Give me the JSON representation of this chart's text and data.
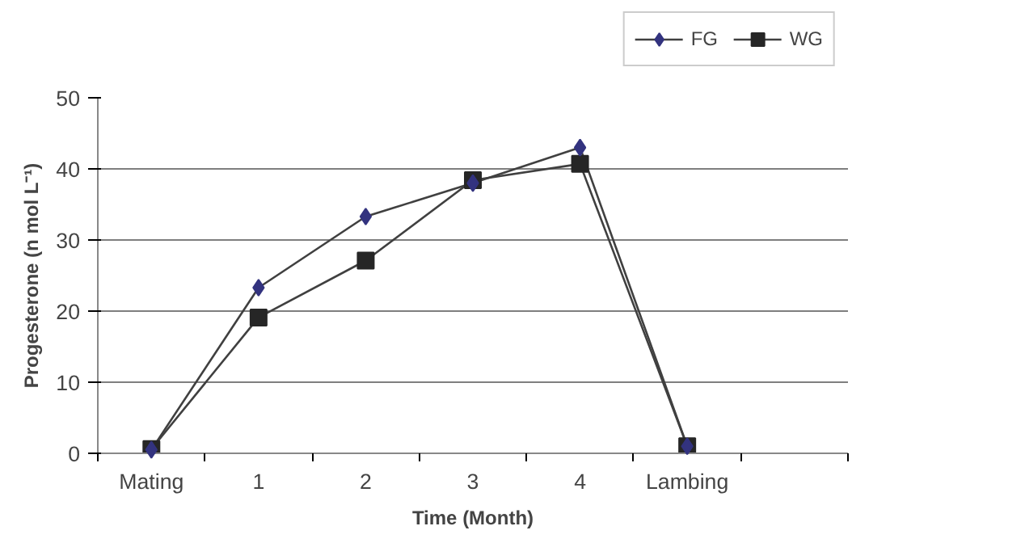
{
  "chart_data": {
    "type": "line",
    "xlabel": "Time (Month)",
    "ylabel": "Progesterone (n mol L⁻¹)",
    "categories": [
      "Mating",
      "1",
      "2",
      "3",
      "4",
      "Lambing",
      null
    ],
    "series": [
      {
        "name": "FG",
        "color": "#33337f",
        "marker": "diamond",
        "values": [
          0.5,
          23.3,
          33.3,
          38.0,
          43.0,
          1.0,
          null
        ]
      },
      {
        "name": "WG",
        "color": "#262626",
        "marker": "square",
        "values": [
          0.6,
          19.1,
          27.1,
          38.4,
          40.7,
          1.0,
          null
        ]
      }
    ],
    "ylim": [
      0,
      50
    ],
    "yticks": [
      0,
      10,
      20,
      30,
      40,
      50
    ],
    "grid": "y",
    "legend": "top right",
    "line_style": "solid"
  }
}
